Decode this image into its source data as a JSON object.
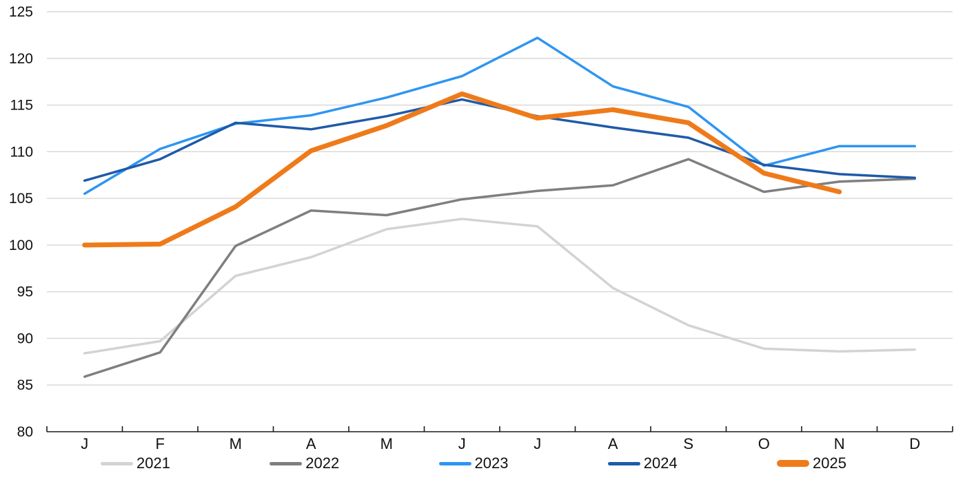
{
  "chart_data": {
    "type": "line",
    "title": "",
    "xlabel": "",
    "ylabel": "",
    "categories": [
      "J",
      "F",
      "M",
      "A",
      "M",
      "J",
      "J",
      "A",
      "S",
      "O",
      "N",
      "D"
    ],
    "y_axis": {
      "min": 80,
      "max": 125,
      "step": 5,
      "ticks": [
        80,
        85,
        90,
        95,
        100,
        105,
        110,
        115,
        120,
        125
      ]
    },
    "grid": "horizontal",
    "legend_position": "bottom",
    "series": [
      {
        "name": "2021",
        "color": "#D3D3D3",
        "line_width": 3.5,
        "values": [
          88.4,
          89.7,
          96.7,
          98.7,
          101.7,
          102.8,
          102.0,
          95.4,
          91.4,
          88.9,
          88.6,
          88.8
        ]
      },
      {
        "name": "2022",
        "color": "#7F7F7F",
        "line_width": 3.5,
        "values": [
          85.9,
          88.5,
          99.9,
          103.7,
          103.2,
          104.9,
          105.8,
          106.4,
          109.2,
          105.7,
          106.8,
          107.1
        ]
      },
      {
        "name": "2023",
        "color": "#2E95F2",
        "line_width": 3.5,
        "values": [
          105.5,
          110.3,
          113.0,
          113.9,
          115.8,
          118.1,
          122.2,
          117.0,
          114.8,
          108.5,
          110.6,
          110.6
        ]
      },
      {
        "name": "2024",
        "color": "#1E5AA8",
        "line_width": 3.5,
        "values": [
          106.9,
          109.2,
          113.1,
          112.4,
          113.8,
          115.6,
          113.8,
          112.6,
          111.5,
          108.6,
          107.6,
          107.2
        ]
      },
      {
        "name": "2025",
        "color": "#EF7A1A",
        "line_width": 7,
        "values": [
          100.0,
          100.1,
          104.1,
          110.1,
          112.8,
          116.2,
          113.6,
          114.5,
          113.1,
          107.7,
          105.7,
          null
        ]
      }
    ],
    "axis_color": "#1a1a1a",
    "gridline_color": "#D6D6D6",
    "label_color": "#111111"
  }
}
